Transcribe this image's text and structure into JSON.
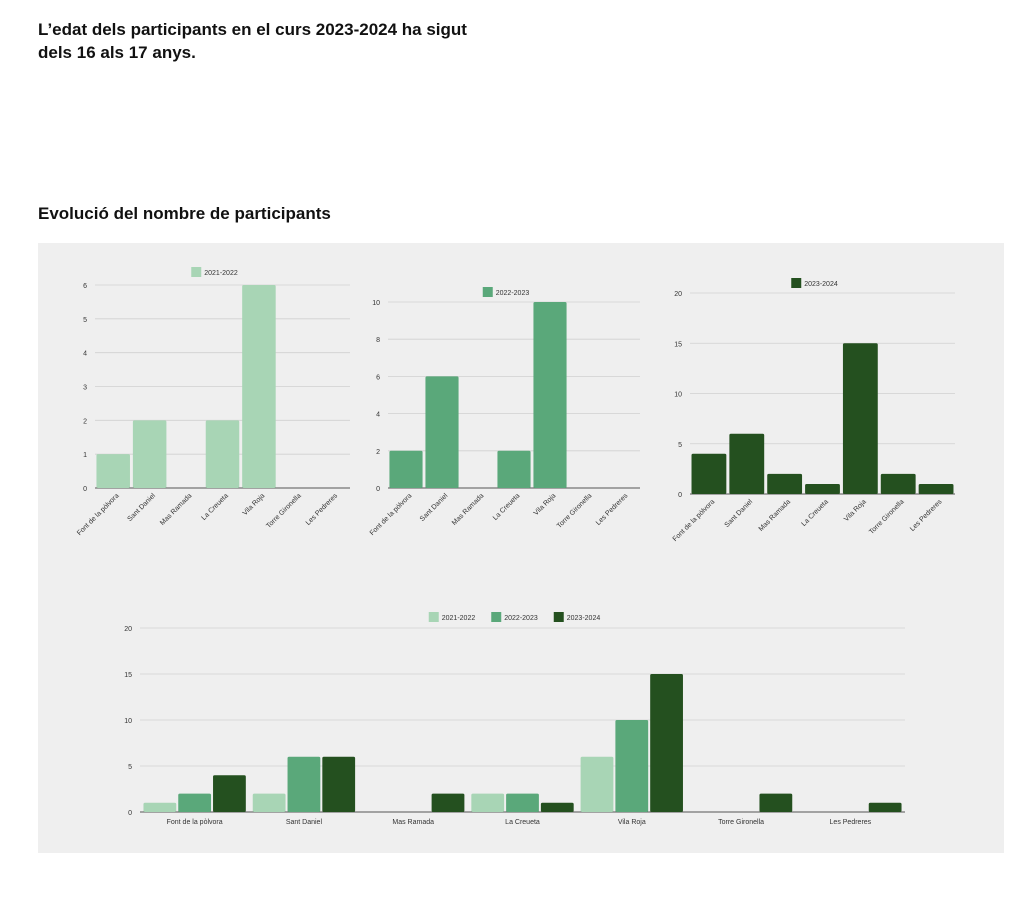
{
  "intro": "L’edat dels participants en el curs 2023-2024 ha sigut dels 16 als 17 anys.",
  "section_title": "Evolució del nombre de participants",
  "colors": {
    "2021-2022": "#a8d5b5",
    "2022-2023": "#5aa87a",
    "2023-2024": "#24501f",
    "background": "#efefef",
    "grid": "#d0d0d0"
  },
  "chart_data": [
    {
      "type": "bar",
      "title": "",
      "legend": [
        "2021-2022"
      ],
      "legend_placement": "top",
      "ylim": [
        0,
        6
      ],
      "yticks": [
        0,
        1,
        2,
        3,
        4,
        5,
        6
      ],
      "categories": [
        "Font de la pòlvora",
        "Sant Daniel",
        "Mas Ramada",
        "La Creueta",
        "Vila Roja",
        "Torre Gironella",
        "Les Pedreres"
      ],
      "series": [
        {
          "name": "2021-2022",
          "values": [
            1,
            2,
            0,
            2,
            6,
            0,
            0
          ]
        }
      ]
    },
    {
      "type": "bar",
      "title": "",
      "legend": [
        "2022-2023"
      ],
      "legend_placement": "top",
      "ylim": [
        0,
        10
      ],
      "yticks": [
        0,
        2,
        4,
        6,
        8,
        10
      ],
      "categories": [
        "Font de la pòlvora",
        "Sant Daniel",
        "Mas Ramada",
        "La Creueta",
        "Vila Roja",
        "Torre Gironella",
        "Les Pedreres"
      ],
      "series": [
        {
          "name": "2022-2023",
          "values": [
            2,
            6,
            0,
            2,
            10,
            0,
            0
          ]
        }
      ]
    },
    {
      "type": "bar",
      "title": "",
      "legend": [
        "2023-2024"
      ],
      "legend_placement": "top",
      "ylim": [
        0,
        20
      ],
      "yticks": [
        0,
        5,
        10,
        15,
        20
      ],
      "categories": [
        "Font de la pòlvora",
        "Sant Daniel",
        "Mas Ramada",
        "La Creueta",
        "Vila Roja",
        "Torre Gironella",
        "Les Pedreres"
      ],
      "series": [
        {
          "name": "2023-2024",
          "values": [
            4,
            6,
            2,
            1,
            15,
            2,
            1
          ]
        }
      ]
    },
    {
      "type": "bar",
      "title": "",
      "legend": [
        "2021-2022",
        "2022-2023",
        "2023-2024"
      ],
      "legend_placement": "top",
      "ylim": [
        0,
        20
      ],
      "yticks": [
        0,
        5,
        10,
        15,
        20
      ],
      "categories": [
        "Font de la pòlvora",
        "Sant Daniel",
        "Mas Ramada",
        "La Creueta",
        "Vila Roja",
        "Torre Gironella",
        "Les Pedreres"
      ],
      "series": [
        {
          "name": "2021-2022",
          "values": [
            1,
            2,
            0,
            2,
            6,
            0,
            0
          ]
        },
        {
          "name": "2022-2023",
          "values": [
            2,
            6,
            0,
            2,
            10,
            0,
            0
          ]
        },
        {
          "name": "2023-2024",
          "values": [
            4,
            6,
            2,
            1,
            15,
            2,
            1
          ]
        }
      ]
    }
  ]
}
